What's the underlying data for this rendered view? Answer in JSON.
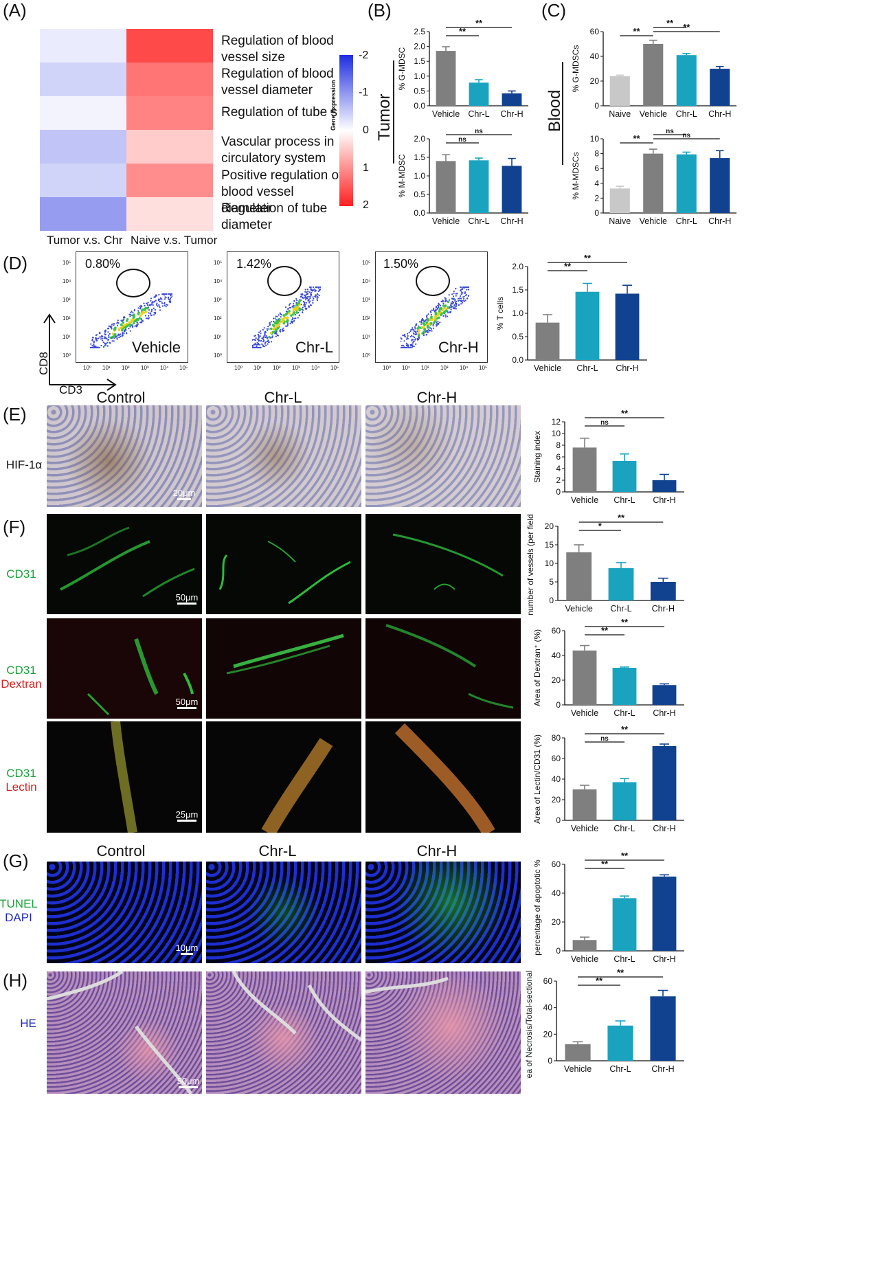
{
  "panels": {
    "A": "(A)",
    "B": "(B)",
    "C": "(C)",
    "D": "(D)",
    "E": "(E)",
    "F": "(F)",
    "G": "(G)",
    "H": "(H)"
  },
  "heatmap": {
    "terms": [
      "Regulation of blood vessel size",
      "Regulation of blood vessel diameter",
      "Regulation of tube size",
      "Vascular process in circulatory system",
      "Positive regulation of blood vessel diameter",
      "Regulation of tube diameter"
    ],
    "col_labels": [
      "Tumor v.s. Chr",
      "Naive v.s. Tumor"
    ],
    "values": [
      [
        -0.25,
        1.9
      ],
      [
        -0.55,
        1.45
      ],
      [
        -0.15,
        1.3
      ],
      [
        -0.75,
        0.55
      ],
      [
        -0.55,
        1.2
      ],
      [
        -1.25,
        0.35
      ]
    ],
    "colorbar_title": "Gene Expression",
    "colorbar_ticks": [
      "-2",
      "-1",
      "0",
      "1",
      "2"
    ],
    "colors": {
      "neg": "#1f2ee0",
      "pos": "#ff1f1f"
    }
  },
  "group_labels": {
    "tumor": "Tumor",
    "blood": "Blood"
  },
  "flow": {
    "x_axis": "CD3",
    "y_axis": "CD8",
    "plots": [
      {
        "name": "Vehicle",
        "pct": "0.80%"
      },
      {
        "name": "Chr-L",
        "pct": "1.42%"
      },
      {
        "name": "Chr-H",
        "pct": "1.50%"
      }
    ],
    "ticks": [
      "10⁰",
      "10¹",
      "10²",
      "10³",
      "10⁴",
      "10⁵"
    ]
  },
  "micro": {
    "col_titles_E": [
      "Control",
      "Chr-L",
      "Chr-H"
    ],
    "col_titles_G": [
      "Control",
      "Chr-L",
      "Chr-H"
    ],
    "rows": [
      {
        "label1": "HIF-1α",
        "label2": "",
        "scale": "20μm"
      },
      {
        "label1": "CD31",
        "label2": "",
        "scale": "50μm"
      },
      {
        "label1": "CD31",
        "label2": "Dextran",
        "scale": "50μm"
      },
      {
        "label1": "CD31",
        "label2": "Lectin",
        "scale": "25μm"
      },
      {
        "label1": "TUNEL",
        "label2": "DAPI",
        "scale": "10μm"
      },
      {
        "label1": "HE",
        "label2": "",
        "scale": "50μm"
      }
    ]
  },
  "colors": {
    "grey": "#7f7f7f",
    "light_grey": "#c8c8c8",
    "teal": "#1aa3bf",
    "navy": "#10428f"
  },
  "chart_data": [
    {
      "id": "B1",
      "type": "bar",
      "categories": [
        "Vehicle",
        "Chr-L",
        "Chr-H"
      ],
      "values": [
        1.85,
        0.78,
        0.42
      ],
      "errors": [
        0.14,
        0.1,
        0.08
      ],
      "ylabel": "% G-MDSC",
      "ylim": [
        0,
        2.5
      ],
      "ticks": [
        0,
        0.5,
        1.0,
        1.5,
        2.0,
        2.5
      ],
      "tickLabels": [
        "0.0",
        "0.5",
        "1.0",
        "1.5",
        "2.0",
        "2.5"
      ],
      "sig": [
        {
          "from": 0,
          "to": 1,
          "label": "**"
        },
        {
          "from": 0,
          "to": 2,
          "label": "**"
        }
      ]
    },
    {
      "id": "B2",
      "type": "bar",
      "categories": [
        "Vehicle",
        "Chr-L",
        "Chr-H"
      ],
      "values": [
        1.4,
        1.42,
        1.27
      ],
      "errors": [
        0.17,
        0.06,
        0.2
      ],
      "ylabel": "% M-MDSC",
      "ylim": [
        0,
        2.0
      ],
      "ticks": [
        0,
        0.5,
        1.0,
        1.5,
        2.0
      ],
      "tickLabels": [
        "0.0",
        "0.5",
        "1.0",
        "1.5",
        "2.0"
      ],
      "sig": [
        {
          "from": 0,
          "to": 1,
          "label": "ns"
        },
        {
          "from": 0,
          "to": 2,
          "label": "ns"
        }
      ]
    },
    {
      "id": "C1",
      "type": "bar",
      "categories": [
        "Naive",
        "Vehicle",
        "Chr-L",
        "Chr-H"
      ],
      "values": [
        24,
        50,
        41,
        30
      ],
      "errors": [
        0.8,
        3,
        1.3,
        1.8
      ],
      "ylabel": "% G-MDSCs",
      "ylim": [
        0,
        60
      ],
      "ticks": [
        0,
        20,
        40,
        60
      ],
      "tickLabels": [
        "0",
        "20",
        "40",
        "60"
      ],
      "sig": [
        {
          "from": 0,
          "to": 1,
          "label": "**"
        },
        {
          "from": 1,
          "to": 2,
          "label": "**"
        },
        {
          "from": 1,
          "to": 3,
          "label": "**"
        }
      ]
    },
    {
      "id": "C2",
      "type": "bar",
      "categories": [
        "Naive",
        "Vehicle",
        "Chr-L",
        "Chr-H"
      ],
      "values": [
        3.3,
        8.0,
        7.9,
        7.4
      ],
      "errors": [
        0.3,
        0.6,
        0.3,
        1.0
      ],
      "ylabel": "% M-MDSCs",
      "ylim": [
        0,
        10
      ],
      "ticks": [
        0,
        2,
        4,
        6,
        8,
        10
      ],
      "tickLabels": [
        "0",
        "2",
        "4",
        "6",
        "8",
        "10"
      ],
      "sig": [
        {
          "from": 0,
          "to": 1,
          "label": "**"
        },
        {
          "from": 1,
          "to": 2,
          "label": "ns"
        },
        {
          "from": 1,
          "to": 3,
          "label": "ns"
        }
      ]
    },
    {
      "id": "D",
      "type": "bar",
      "categories": [
        "Vehicle",
        "Chr-L",
        "Chr-H"
      ],
      "values": [
        0.8,
        1.46,
        1.42
      ],
      "errors": [
        0.17,
        0.18,
        0.18
      ],
      "ylabel": "% T cells",
      "ylim": [
        0,
        2.0
      ],
      "ticks": [
        0,
        0.5,
        1.0,
        1.5,
        2.0
      ],
      "tickLabels": [
        "0.0",
        "0.5",
        "1.0",
        "1.5",
        "2.0"
      ],
      "sig": [
        {
          "from": 0,
          "to": 1,
          "label": "**"
        },
        {
          "from": 0,
          "to": 2,
          "label": "**"
        }
      ]
    },
    {
      "id": "E",
      "type": "bar",
      "categories": [
        "Vehicle",
        "Chr-L",
        "Chr-H"
      ],
      "values": [
        7.6,
        5.3,
        2.0
      ],
      "errors": [
        1.6,
        1.2,
        1.0
      ],
      "ylabel": "Staining index",
      "ylim": [
        0,
        12
      ],
      "ticks": [
        0,
        2,
        4,
        6,
        8,
        10,
        12
      ],
      "tickLabels": [
        "0",
        "2",
        "4",
        "6",
        "8",
        "10",
        "12"
      ],
      "sig": [
        {
          "from": 0,
          "to": 1,
          "label": "ns"
        },
        {
          "from": 0,
          "to": 2,
          "label": "**"
        }
      ]
    },
    {
      "id": "F1",
      "type": "bar",
      "categories": [
        "Vehicle",
        "Chr-L",
        "Chr-H"
      ],
      "values": [
        13,
        8.7,
        5.0
      ],
      "errors": [
        2.0,
        1.5,
        1.0
      ],
      "ylabel": "number of vessels (per field)",
      "ylim": [
        0,
        20
      ],
      "ticks": [
        0,
        5,
        10,
        15,
        20
      ],
      "tickLabels": [
        "0",
        "5",
        "10",
        "15",
        "20"
      ],
      "sig": [
        {
          "from": 0,
          "to": 1,
          "label": "*"
        },
        {
          "from": 0,
          "to": 2,
          "label": "**"
        }
      ]
    },
    {
      "id": "F2",
      "type": "bar",
      "categories": [
        "Vehicle",
        "Chr-L",
        "Chr-H"
      ],
      "values": [
        44,
        30,
        16
      ],
      "errors": [
        4,
        0.6,
        1.0
      ],
      "ylabel": "Area of Dextran⁺ (%)",
      "ylim": [
        0,
        60
      ],
      "ticks": [
        0,
        20,
        40,
        60
      ],
      "tickLabels": [
        "0",
        "20",
        "40",
        "60"
      ],
      "sig": [
        {
          "from": 0,
          "to": 1,
          "label": "**"
        },
        {
          "from": 0,
          "to": 2,
          "label": "**"
        }
      ]
    },
    {
      "id": "F3",
      "type": "bar",
      "categories": [
        "Vehicle",
        "Chr-L",
        "Chr-H"
      ],
      "values": [
        30,
        37,
        72
      ],
      "errors": [
        4,
        3.5,
        2
      ],
      "ylabel": "Area of Lectin/CD31 (%)",
      "ylim": [
        0,
        80
      ],
      "ticks": [
        0,
        20,
        40,
        60,
        80
      ],
      "tickLabels": [
        "0",
        "20",
        "40",
        "60",
        "80"
      ],
      "sig": [
        {
          "from": 0,
          "to": 1,
          "label": "ns"
        },
        {
          "from": 0,
          "to": 2,
          "label": "**"
        }
      ]
    },
    {
      "id": "G",
      "type": "bar",
      "categories": [
        "Vehicle",
        "Chr-L",
        "Chr-H"
      ],
      "values": [
        7.5,
        36.5,
        51.5
      ],
      "errors": [
        2,
        1.5,
        1.2
      ],
      "ylabel": "percentage of apoptotic %",
      "ylim": [
        0,
        60
      ],
      "ticks": [
        0,
        20,
        40,
        60
      ],
      "tickLabels": [
        "0",
        "20",
        "40",
        "60"
      ],
      "sig": [
        {
          "from": 0,
          "to": 1,
          "label": "**"
        },
        {
          "from": 0,
          "to": 2,
          "label": "**"
        }
      ]
    },
    {
      "id": "H",
      "type": "bar",
      "categories": [
        "Vehicle",
        "Chr-L",
        "Chr-H"
      ],
      "values": [
        12.5,
        26.5,
        48.5
      ],
      "errors": [
        1.8,
        3.5,
        4.5
      ],
      "ylabel": "Area of Necrosis/Total-sectional (%)",
      "ylim": [
        0,
        60
      ],
      "ticks": [
        0,
        20,
        40,
        60
      ],
      "tickLabels": [
        "0",
        "20",
        "40",
        "60"
      ],
      "sig": [
        {
          "from": 0,
          "to": 1,
          "label": "**"
        },
        {
          "from": 0,
          "to": 2,
          "label": "**"
        }
      ]
    }
  ]
}
